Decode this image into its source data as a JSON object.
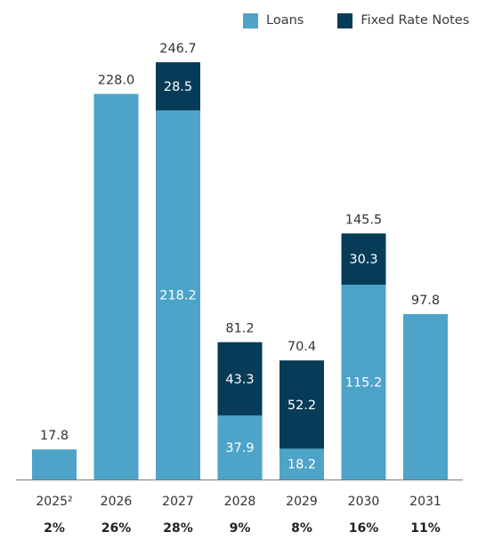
{
  "colors": {
    "loans": "#4ea3c9",
    "fixed_rate_notes": "#063c58",
    "axis": "#7a7a7a",
    "text": "#333333"
  },
  "chart_data": {
    "type": "bar",
    "stacked": true,
    "title": "",
    "xlabel": "",
    "ylabel": "",
    "legend_position": "top-right",
    "grid": false,
    "categories": [
      "2025²",
      "2026",
      "2027",
      "2028",
      "2029",
      "2030",
      "2031"
    ],
    "series": [
      {
        "name": "Loans",
        "color": "#4ea3c9",
        "values": [
          17.8,
          228.0,
          218.2,
          37.9,
          18.2,
          115.2,
          97.8
        ]
      },
      {
        "name": "Fixed Rate Notes",
        "color": "#063c58",
        "values": [
          0,
          0,
          28.5,
          43.3,
          52.2,
          30.3,
          0
        ]
      }
    ],
    "segment_labels": {
      "Loans": [
        "",
        "",
        "218.2",
        "37.9",
        "18.2",
        "115.2",
        ""
      ],
      "Fixed Rate Notes": [
        "",
        "",
        "28.5",
        "43.3",
        "52.2",
        "30.3",
        ""
      ]
    },
    "totals": [
      "17.8",
      "228.0",
      "246.7",
      "81.2",
      "70.4",
      "145.5",
      "97.8"
    ],
    "percentages": [
      "2%",
      "26%",
      "28%",
      "9%",
      "8%",
      "16%",
      "11%"
    ],
    "ylim": [
      0,
      246.7
    ]
  }
}
